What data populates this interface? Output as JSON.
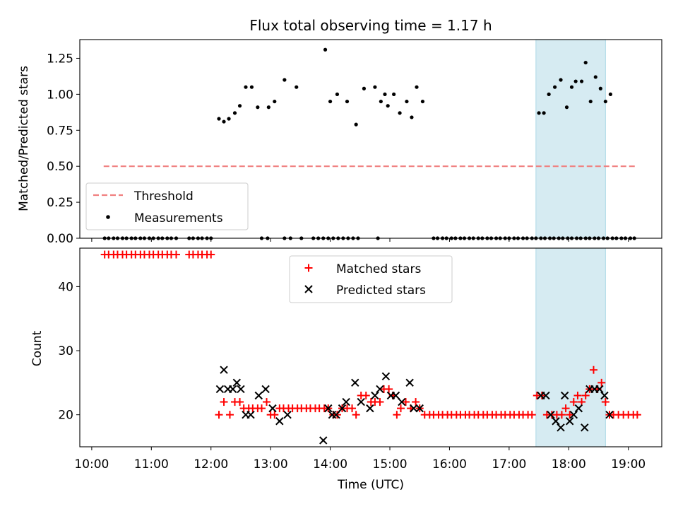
{
  "title": "Flux total observing time = 1.17 h",
  "colors": {
    "threshold": "#f08080",
    "measurement": "#000000",
    "matched": "#ff0000",
    "predicted": "#000000",
    "highlight": "#add8e6"
  },
  "chart_data": [
    {
      "type": "scatter",
      "panel": "top",
      "ylabel": "Matched/Predicted stars",
      "ylim": [
        0,
        1.38
      ],
      "yticks": [
        "0.00",
        "0.25",
        "0.50",
        "0.75",
        "1.00",
        "1.25"
      ],
      "xlim_hours": [
        9.8,
        19.56
      ],
      "grid": false,
      "legend": {
        "placement": "lower-left",
        "entries": [
          "Threshold",
          "Measurements"
        ]
      },
      "threshold": {
        "name": "Threshold",
        "y": 0.5,
        "x_start": "10:12",
        "x_end": "19:08"
      },
      "highlight_span": [
        "17:27",
        "18:37"
      ],
      "series": [
        {
          "name": "Measurements",
          "points": [
            [
              "12:08",
              0.83
            ],
            [
              "12:13",
              0.81
            ],
            [
              "12:18",
              0.83
            ],
            [
              "12:24",
              0.87
            ],
            [
              "12:29",
              0.92
            ],
            [
              "12:35",
              1.05
            ],
            [
              "12:41",
              1.05
            ],
            [
              "12:47",
              0.91
            ],
            [
              "12:58",
              0.91
            ],
            [
              "13:04",
              0.95
            ],
            [
              "13:14",
              1.1
            ],
            [
              "13:26",
              1.05
            ],
            [
              "13:55",
              1.31
            ],
            [
              "14:00",
              0.95
            ],
            [
              "14:07",
              1.0
            ],
            [
              "14:17",
              0.95
            ],
            [
              "14:26",
              0.79
            ],
            [
              "14:34",
              1.04
            ],
            [
              "14:45",
              1.05
            ],
            [
              "14:51",
              0.95
            ],
            [
              "14:55",
              1.0
            ],
            [
              "14:58",
              0.92
            ],
            [
              "15:04",
              1.0
            ],
            [
              "15:10",
              0.87
            ],
            [
              "15:17",
              0.95
            ],
            [
              "15:22",
              0.84
            ],
            [
              "15:27",
              1.05
            ],
            [
              "15:33",
              0.95
            ],
            [
              "17:30",
              0.87
            ],
            [
              "17:35",
              0.87
            ],
            [
              "17:40",
              1.0
            ],
            [
              "17:46",
              1.05
            ],
            [
              "17:52",
              1.1
            ],
            [
              "17:58",
              0.91
            ],
            [
              "18:03",
              1.05
            ],
            [
              "18:07",
              1.09
            ],
            [
              "18:13",
              1.09
            ],
            [
              "18:17",
              1.22
            ],
            [
              "18:22",
              0.95
            ],
            [
              "18:27",
              1.12
            ],
            [
              "18:32",
              1.04
            ],
            [
              "18:37",
              0.95
            ],
            [
              "18:42",
              1.0
            ]
          ],
          "zero_points": [
            "10:13",
            "10:17",
            "10:22",
            "10:26",
            "10:31",
            "10:35",
            "10:40",
            "10:44",
            "10:49",
            "10:53",
            "10:58",
            "11:02",
            "11:07",
            "11:11",
            "11:16",
            "11:20",
            "11:25",
            "11:38",
            "11:42",
            "11:47",
            "11:51",
            "11:56",
            "12:00",
            "12:51",
            "12:57",
            "13:14",
            "13:20",
            "13:31",
            "13:43",
            "13:48",
            "13:53",
            "13:58",
            "14:03",
            "14:08",
            "14:13",
            "14:18",
            "14:23",
            "14:28",
            "14:48",
            "15:44",
            "15:48",
            "15:53",
            "15:57",
            "16:02",
            "16:06",
            "16:11",
            "16:15",
            "16:20",
            "16:24",
            "16:29",
            "16:33",
            "16:38",
            "16:42",
            "16:47",
            "16:51",
            "16:56",
            "17:00",
            "17:05",
            "17:09",
            "17:14",
            "17:18",
            "17:23",
            "17:27",
            "17:32",
            "17:36",
            "17:41",
            "17:45",
            "17:50",
            "17:54",
            "17:59",
            "18:03",
            "18:08",
            "18:12",
            "18:17",
            "18:21",
            "18:26",
            "18:30",
            "18:35",
            "18:39",
            "18:44",
            "18:48",
            "18:53",
            "18:57",
            "19:02",
            "19:06"
          ]
        }
      ]
    },
    {
      "type": "scatter",
      "panel": "bottom",
      "xlabel": "Time (UTC)",
      "ylabel": "Count",
      "ylim": [
        15,
        46
      ],
      "yticks": [
        "20",
        "30",
        "40"
      ],
      "xticks": [
        "10:00",
        "11:00",
        "12:00",
        "13:00",
        "14:00",
        "15:00",
        "16:00",
        "17:00",
        "18:00",
        "19:00"
      ],
      "xlim_hours": [
        9.8,
        19.56
      ],
      "grid": false,
      "legend": {
        "placement": "upper-center",
        "entries": [
          "Matched stars",
          "Predicted stars"
        ]
      },
      "highlight_span": [
        "17:27",
        "18:37"
      ],
      "series": [
        {
          "name": "Matched stars",
          "marker": "plus",
          "points": [
            [
              "10:13",
              45
            ],
            [
              "10:17",
              45
            ],
            [
              "10:22",
              45
            ],
            [
              "10:26",
              45
            ],
            [
              "10:31",
              45
            ],
            [
              "10:35",
              45
            ],
            [
              "10:40",
              45
            ],
            [
              "10:44",
              45
            ],
            [
              "10:49",
              45
            ],
            [
              "10:53",
              45
            ],
            [
              "10:58",
              45
            ],
            [
              "11:02",
              45
            ],
            [
              "11:07",
              45
            ],
            [
              "11:11",
              45
            ],
            [
              "11:16",
              45
            ],
            [
              "11:20",
              45
            ],
            [
              "11:25",
              45
            ],
            [
              "11:38",
              45
            ],
            [
              "11:42",
              45
            ],
            [
              "11:47",
              45
            ],
            [
              "11:51",
              45
            ],
            [
              "11:56",
              45
            ],
            [
              "12:00",
              45
            ],
            [
              "12:08",
              20
            ],
            [
              "12:13",
              22
            ],
            [
              "12:19",
              20
            ],
            [
              "12:24",
              22
            ],
            [
              "12:29",
              22
            ],
            [
              "12:33",
              21
            ],
            [
              "12:38",
              21
            ],
            [
              "12:42",
              21
            ],
            [
              "12:47",
              21
            ],
            [
              "12:51",
              21
            ],
            [
              "12:56",
              22
            ],
            [
              "13:00",
              20
            ],
            [
              "13:04",
              20
            ],
            [
              "13:09",
              21
            ],
            [
              "13:13",
              21
            ],
            [
              "13:18",
              21
            ],
            [
              "13:22",
              21
            ],
            [
              "13:27",
              21
            ],
            [
              "13:31",
              21
            ],
            [
              "13:36",
              21
            ],
            [
              "13:40",
              21
            ],
            [
              "13:45",
              21
            ],
            [
              "13:49",
              21
            ],
            [
              "13:54",
              21
            ],
            [
              "13:58",
              21
            ],
            [
              "14:03",
              20
            ],
            [
              "14:07",
              20
            ],
            [
              "14:12",
              21
            ],
            [
              "14:17",
              21
            ],
            [
              "14:22",
              21
            ],
            [
              "14:26",
              20
            ],
            [
              "14:31",
              23
            ],
            [
              "14:36",
              23
            ],
            [
              "14:41",
              22
            ],
            [
              "14:45",
              22
            ],
            [
              "14:50",
              22
            ],
            [
              "14:54",
              24
            ],
            [
              "14:59",
              24
            ],
            [
              "15:03",
              23
            ],
            [
              "15:07",
              20
            ],
            [
              "15:11",
              21
            ],
            [
              "15:16",
              22
            ],
            [
              "15:21",
              21
            ],
            [
              "15:26",
              22
            ],
            [
              "15:30",
              21
            ],
            [
              "15:35",
              20
            ],
            [
              "15:40",
              20
            ],
            [
              "15:44",
              20
            ],
            [
              "15:49",
              20
            ],
            [
              "15:53",
              20
            ],
            [
              "15:58",
              20
            ],
            [
              "16:02",
              20
            ],
            [
              "16:07",
              20
            ],
            [
              "16:11",
              20
            ],
            [
              "16:16",
              20
            ],
            [
              "16:20",
              20
            ],
            [
              "16:25",
              20
            ],
            [
              "16:29",
              20
            ],
            [
              "16:34",
              20
            ],
            [
              "16:38",
              20
            ],
            [
              "16:43",
              20
            ],
            [
              "16:47",
              20
            ],
            [
              "16:52",
              20
            ],
            [
              "16:56",
              20
            ],
            [
              "17:01",
              20
            ],
            [
              "17:05",
              20
            ],
            [
              "17:10",
              20
            ],
            [
              "17:14",
              20
            ],
            [
              "17:19",
              20
            ],
            [
              "17:23",
              20
            ],
            [
              "17:28",
              23
            ],
            [
              "17:33",
              23
            ],
            [
              "17:38",
              20
            ],
            [
              "17:43",
              20
            ],
            [
              "17:48",
              20
            ],
            [
              "17:53",
              20
            ],
            [
              "17:57",
              21
            ],
            [
              "18:01",
              20
            ],
            [
              "18:05",
              22
            ],
            [
              "18:09",
              23
            ],
            [
              "18:13",
              22
            ],
            [
              "18:17",
              23
            ],
            [
              "18:21",
              24
            ],
            [
              "18:25",
              27
            ],
            [
              "18:29",
              24
            ],
            [
              "18:33",
              25
            ],
            [
              "18:37",
              22
            ],
            [
              "18:41",
              20
            ],
            [
              "18:45",
              20
            ],
            [
              "18:50",
              20
            ],
            [
              "18:55",
              20
            ],
            [
              "19:00",
              20
            ],
            [
              "19:05",
              20
            ],
            [
              "19:09",
              20
            ]
          ]
        },
        {
          "name": "Predicted stars",
          "marker": "x",
          "points": [
            [
              "12:09",
              24
            ],
            [
              "12:13",
              27
            ],
            [
              "12:17",
              24
            ],
            [
              "12:22",
              24
            ],
            [
              "12:26",
              25
            ],
            [
              "12:30",
              24
            ],
            [
              "12:35",
              20
            ],
            [
              "12:40",
              20
            ],
            [
              "12:48",
              23
            ],
            [
              "12:55",
              24
            ],
            [
              "13:02",
              21
            ],
            [
              "13:09",
              19
            ],
            [
              "13:17",
              20
            ],
            [
              "13:53",
              16
            ],
            [
              "13:58",
              21
            ],
            [
              "14:02",
              20
            ],
            [
              "14:06",
              20
            ],
            [
              "14:12",
              21
            ],
            [
              "14:16",
              22
            ],
            [
              "14:25",
              25
            ],
            [
              "14:31",
              22
            ],
            [
              "14:40",
              21
            ],
            [
              "14:45",
              23
            ],
            [
              "14:50",
              24
            ],
            [
              "14:56",
              26
            ],
            [
              "15:01",
              23
            ],
            [
              "15:06",
              23
            ],
            [
              "15:12",
              22
            ],
            [
              "15:20",
              25
            ],
            [
              "15:24",
              21
            ],
            [
              "15:30",
              21
            ],
            [
              "17:32",
              23
            ],
            [
              "17:37",
              23
            ],
            [
              "17:42",
              20
            ],
            [
              "17:47",
              19
            ],
            [
              "17:52",
              18
            ],
            [
              "17:56",
              23
            ],
            [
              "18:01",
              19
            ],
            [
              "18:05",
              20
            ],
            [
              "18:10",
              21
            ],
            [
              "18:16",
              18
            ],
            [
              "18:21",
              24
            ],
            [
              "18:26",
              24
            ],
            [
              "18:31",
              24
            ],
            [
              "18:36",
              23
            ],
            [
              "18:41",
              20
            ]
          ]
        }
      ]
    }
  ]
}
